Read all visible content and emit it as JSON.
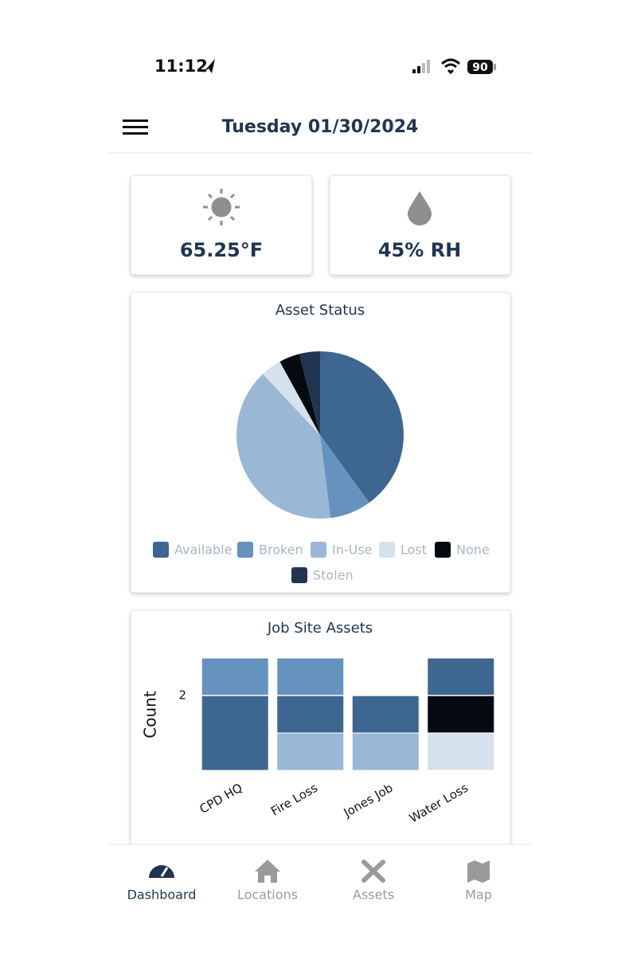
{
  "status_bar": {
    "time": "11:12",
    "battery": "90"
  },
  "header": {
    "title": "Tuesday 01/30/2024"
  },
  "weather": {
    "temperature": "65.25°F",
    "humidity": "45% RH"
  },
  "charts": [
    {
      "type": "pie",
      "title": "Asset Status",
      "categories": [
        "Available",
        "Broken",
        "In-Use",
        "Lost",
        "None",
        "Stolen"
      ],
      "values": [
        10,
        2,
        10,
        1,
        1,
        1
      ],
      "colors": [
        "#3d6690",
        "#6592bf",
        "#9ab7d6",
        "#d5e1ec",
        "#060a10",
        "#213550"
      ]
    },
    {
      "type": "stacked_bar",
      "title": "Job Site Assets",
      "ylabel": "Count",
      "categories": [
        "CPD HQ",
        "Fire Loss",
        "Jones Job",
        "Water Loss"
      ],
      "series": [
        {
          "name": "Lost",
          "color": "#d5e1ec",
          "values": [
            0,
            0,
            0,
            1
          ]
        },
        {
          "name": "None",
          "color": "#060a10",
          "values": [
            0,
            0,
            0,
            1
          ]
        },
        {
          "name": "In-Use",
          "color": "#9ab7d6",
          "values": [
            0,
            1,
            1,
            0
          ]
        },
        {
          "name": "Available",
          "color": "#3d6690",
          "values": [
            2,
            1,
            1,
            1
          ]
        },
        {
          "name": "Broken",
          "color": "#6592bf",
          "values": [
            1,
            1,
            0,
            0
          ]
        }
      ],
      "ylim": [
        0,
        3
      ],
      "yticks": [
        2
      ]
    }
  ],
  "nav": {
    "items": [
      "Dashboard",
      "Locations",
      "Assets",
      "Map"
    ]
  }
}
